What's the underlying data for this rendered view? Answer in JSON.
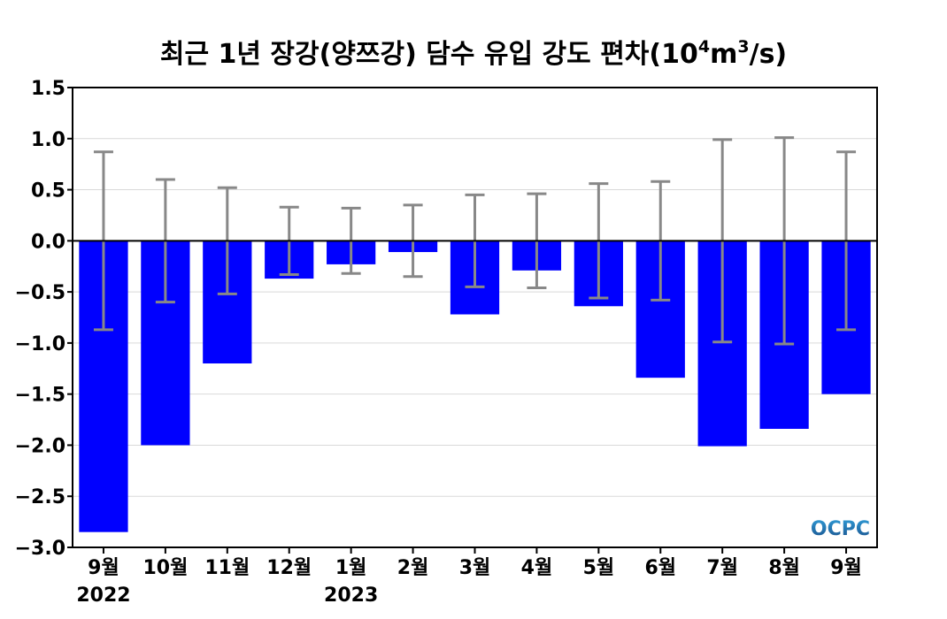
{
  "chart_data": {
    "type": "bar",
    "title": "최근 1년 장강(양쯔강) 담수 유입 강도 편차",
    "title_unit": {
      "base": "10",
      "sup1": "4",
      "mid": "m",
      "sup2": "3",
      "tail": "/s)"
    },
    "title_open_paren": "(",
    "categories": [
      "9월",
      "10월",
      "11월",
      "12월",
      "1월",
      "2월",
      "3월",
      "4월",
      "5월",
      "6월",
      "7월",
      "8월",
      "9월"
    ],
    "year_labels": [
      {
        "index": 0,
        "label": "2022"
      },
      {
        "index": 4,
        "label": "2023"
      }
    ],
    "values": [
      -2.85,
      -2.0,
      -1.2,
      -0.37,
      -0.23,
      -0.11,
      -0.72,
      -0.29,
      -0.64,
      -1.34,
      -2.01,
      -1.84,
      -1.5
    ],
    "error": [
      0.87,
      0.6,
      0.52,
      0.33,
      0.32,
      0.35,
      0.45,
      0.46,
      0.56,
      0.58,
      0.99,
      1.01,
      0.87
    ],
    "ylim": [
      -3.0,
      1.5
    ],
    "yticks": [
      1.5,
      1.0,
      0.5,
      0.0,
      -0.5,
      -1.0,
      -1.5,
      -2.0,
      -2.5,
      -3.0
    ],
    "ytick_labels": [
      "1.5",
      "1.0",
      "0.5",
      "0.0",
      "−0.5",
      "−1.0",
      "−1.5",
      "−2.0",
      "−2.5",
      "−3.0"
    ],
    "grid": true,
    "bar_color": "#0000ff",
    "error_color": "#888888"
  },
  "logo": {
    "text": "OCPC",
    "color_top": "#2f9bd6",
    "color_bottom": "#1a4f8a"
  }
}
